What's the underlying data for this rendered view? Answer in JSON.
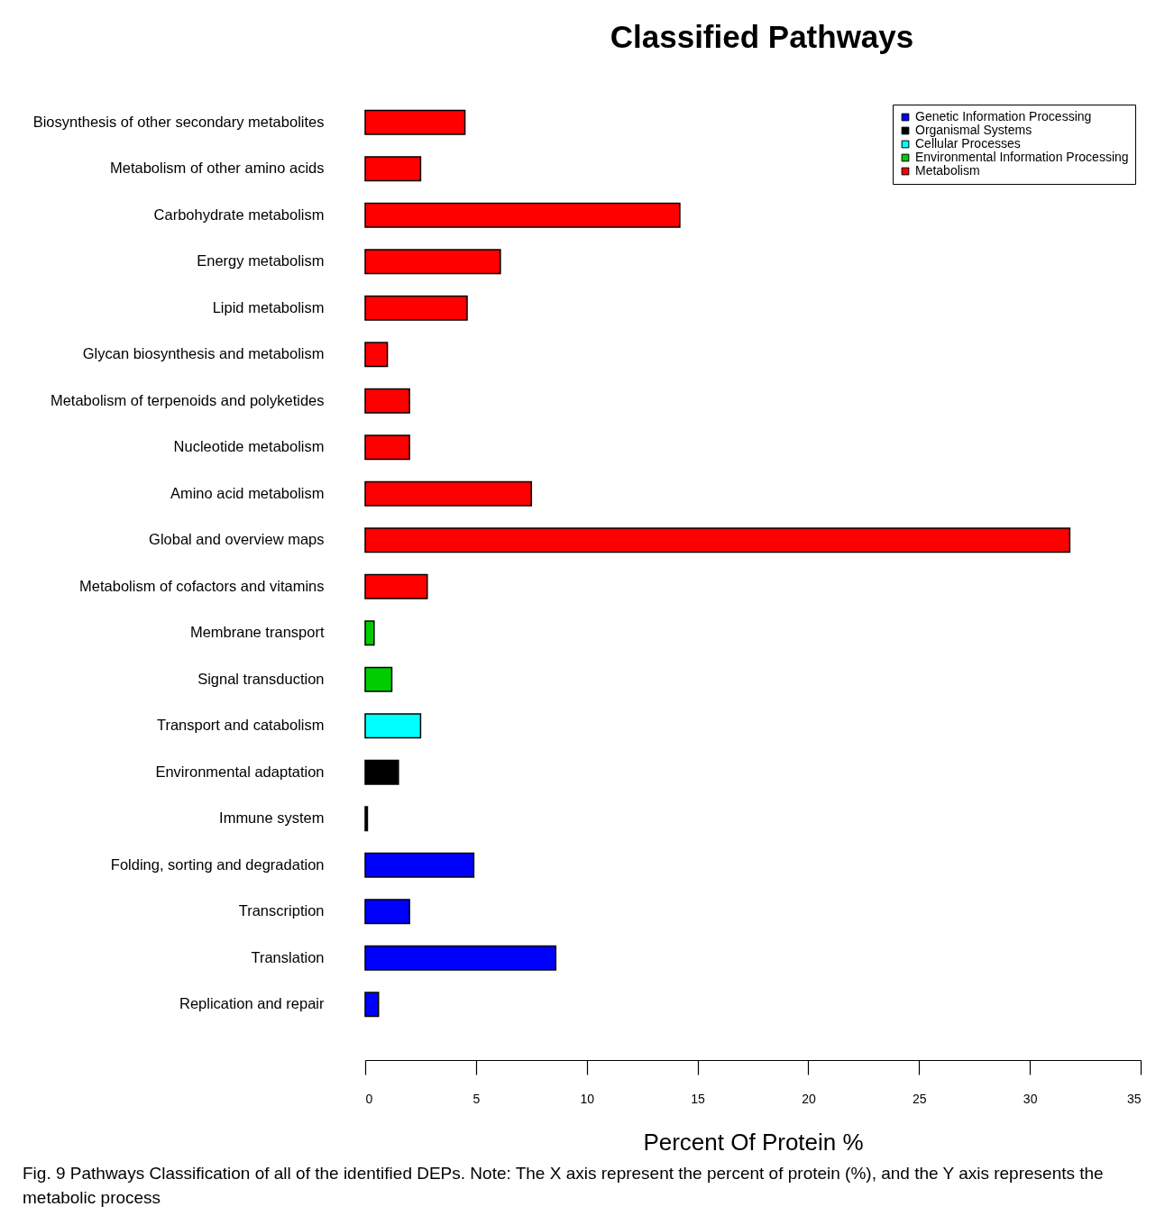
{
  "chart_data": {
    "type": "bar",
    "orientation": "horizontal",
    "title": "Classified Pathways",
    "xlabel": "Percent Of Protein %",
    "categories": [
      "Biosynthesis of other secondary metabolites",
      "Metabolism of other amino acids",
      "Carbohydrate metabolism",
      "Energy metabolism",
      "Lipid metabolism",
      "Glycan biosynthesis and metabolism",
      "Metabolism of terpenoids and polyketides",
      "Nucleotide metabolism",
      "Amino acid metabolism",
      "Global and overview maps",
      "Metabolism of cofactors and vitamins",
      "Membrane transport",
      "Signal transduction",
      "Transport and catabolism",
      "Environmental adaptation",
      "Immune system",
      "Folding, sorting and degradation",
      "Transcription",
      "Translation",
      "Replication and repair"
    ],
    "series": [
      {
        "name": "Genetic Information Processing",
        "color": "#0000ff",
        "values": [
          null,
          null,
          null,
          null,
          null,
          null,
          null,
          null,
          null,
          null,
          null,
          null,
          null,
          null,
          null,
          null,
          4.9,
          2.0,
          8.6,
          0.6
        ]
      },
      {
        "name": "Organismal Systems",
        "color": "#000000",
        "values": [
          null,
          null,
          null,
          null,
          null,
          null,
          null,
          null,
          null,
          null,
          null,
          null,
          null,
          null,
          1.5,
          0.1,
          null,
          null,
          null,
          null
        ]
      },
      {
        "name": "Cellular Processes",
        "color": "#00ffff",
        "values": [
          null,
          null,
          null,
          null,
          null,
          null,
          null,
          null,
          null,
          null,
          null,
          null,
          null,
          2.5,
          null,
          null,
          null,
          null,
          null,
          null
        ]
      },
      {
        "name": "Environmental Information Processing",
        "color": "#00cd00",
        "values": [
          null,
          null,
          null,
          null,
          null,
          null,
          null,
          null,
          null,
          null,
          null,
          0.4,
          1.2,
          null,
          null,
          null,
          null,
          null,
          null,
          null
        ]
      },
      {
        "name": "Metabolism",
        "color": "#ff0000",
        "values": [
          4.5,
          2.5,
          14.2,
          6.1,
          4.6,
          1.0,
          2.0,
          2.0,
          7.5,
          31.8,
          2.8,
          null,
          null,
          null,
          null,
          null,
          null,
          null,
          null,
          null
        ]
      }
    ],
    "xlim": [
      0,
      35
    ],
    "xticks": [
      0,
      5,
      10,
      15,
      20,
      25,
      30,
      35
    ],
    "grid": false,
    "legend": "top right",
    "annotations": [
      "Fig. 9 Pathways Classification of all of the identified DEPs. Note: The X axis represent the percent of protein (%), and the Y axis represents the metabolic process"
    ]
  }
}
